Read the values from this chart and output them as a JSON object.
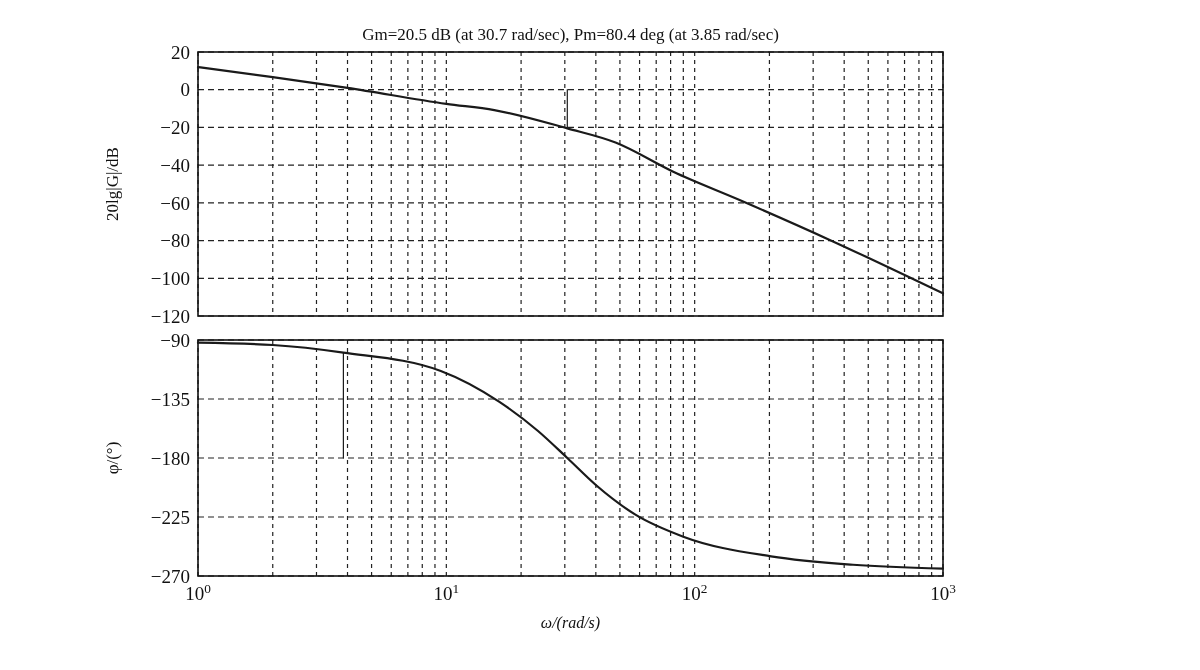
{
  "chart_data": [
    {
      "type": "line",
      "title": "Gm=20.5 dB (at 30.7 rad/sec), Pm=80.4 deg (at 3.85 rad/sec)",
      "ylabel": "20lg|G|/dB",
      "log": "x",
      "xlim": [
        1,
        1000
      ],
      "xticks": [
        1,
        2,
        3,
        4,
        5,
        6,
        7,
        8,
        9,
        10,
        20,
        30,
        40,
        50,
        60,
        70,
        80,
        90,
        100,
        200,
        300,
        400,
        500,
        600,
        700,
        800,
        900,
        1000
      ],
      "ylim": [
        -120,
        20
      ],
      "yticks": [
        -120,
        -100,
        -80,
        -60,
        -40,
        -20,
        0,
        20
      ],
      "grid": true,
      "tick_labels": "y",
      "series": [
        {
          "color": "#1a1a1a",
          "x": [
            1,
            2,
            4,
            10,
            15.6,
            30.7,
            48,
            82,
            155,
            348,
            1000
          ],
          "values": [
            12,
            6.7,
            1,
            -7.5,
            -10.8,
            -20.5,
            -28,
            -43.5,
            -59,
            -79.5,
            -108
          ]
        },
        {
          "color": "#1a1a1a",
          "x": [
            30.7,
            30.7
          ],
          "values": [
            0,
            -20.5
          ]
        }
      ]
    },
    {
      "type": "line",
      "xlabel": "ω/(rad/s)",
      "ylabel": "φ/(°)",
      "log": "x",
      "xlim": [
        1,
        1000
      ],
      "xticks": [
        {
          "value": 1,
          "label": "10$^{0}$"
        },
        {
          "value": 2,
          "label": null
        },
        {
          "value": 3,
          "label": null
        },
        {
          "value": 4,
          "label": null
        },
        {
          "value": 5,
          "label": null
        },
        {
          "value": 6,
          "label": null
        },
        {
          "value": 7,
          "label": null
        },
        {
          "value": 8,
          "label": null
        },
        {
          "value": 9,
          "label": null
        },
        {
          "value": 10,
          "label": "10$^{1}$"
        },
        {
          "value": 20,
          "label": null
        },
        {
          "value": 30,
          "label": null
        },
        {
          "value": 40,
          "label": null
        },
        {
          "value": 50,
          "label": null
        },
        {
          "value": 60,
          "label": null
        },
        {
          "value": 70,
          "label": null
        },
        {
          "value": 80,
          "label": null
        },
        {
          "value": 90,
          "label": null
        },
        {
          "value": 100,
          "label": "10$^{2}$"
        },
        {
          "value": 200,
          "label": null
        },
        {
          "value": 300,
          "label": null
        },
        {
          "value": 400,
          "label": null
        },
        {
          "value": 500,
          "label": null
        },
        {
          "value": 600,
          "label": null
        },
        {
          "value": 700,
          "label": null
        },
        {
          "value": 800,
          "label": null
        },
        {
          "value": 900,
          "label": null
        },
        {
          "value": 1000,
          "label": "10$^{3}$"
        }
      ],
      "ylim": [
        -270,
        -90
      ],
      "yticks": [
        -270,
        -225,
        -180,
        -135,
        -90
      ],
      "grid": true,
      "series": [
        {
          "color": "#1a1a1a",
          "x": [
            1,
            2,
            3.85,
            9.5,
            16.3,
            23.4,
            30.7,
            40,
            57.5,
            90,
            203,
            434,
            1000
          ],
          "values": [
            -92,
            -93.8,
            -99.6,
            -113.6,
            -137,
            -159.4,
            -180,
            -200.6,
            -223,
            -240,
            -255,
            -261.4,
            -264.4
          ]
        },
        {
          "color": "#1a1a1a",
          "x": [
            3.85,
            3.85
          ],
          "values": [
            -99.6,
            -180
          ]
        }
      ]
    }
  ]
}
